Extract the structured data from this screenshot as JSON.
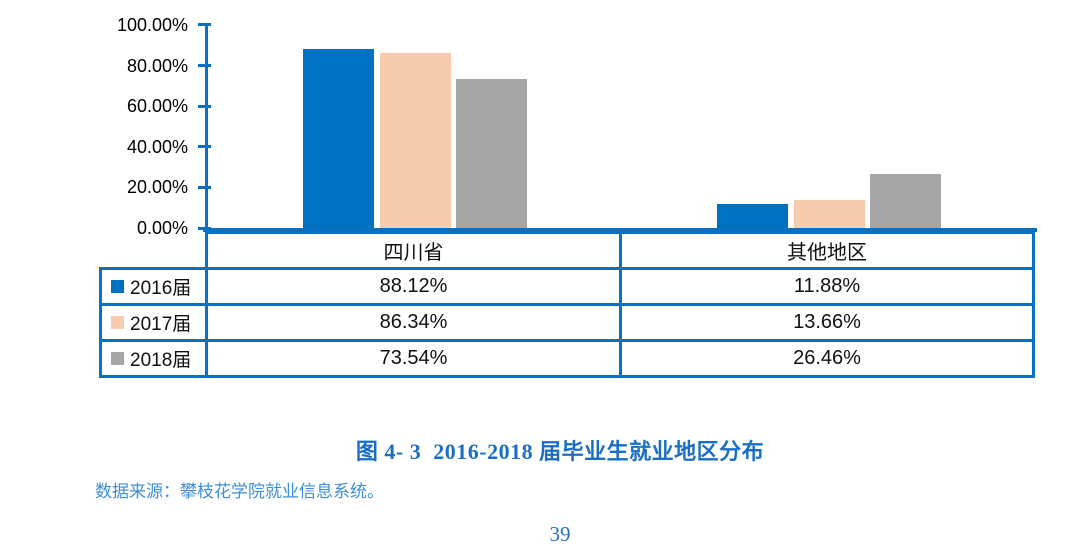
{
  "page": {
    "number": "39"
  },
  "figure": {
    "caption": "图 4- 3  2016-2018 届毕业生就业地区分布",
    "source_note": "数据来源：攀枝花学院就业信息系统。"
  },
  "chart_data": {
    "type": "bar",
    "title": "图 4- 3  2016-2018 届毕业生就业地区分布",
    "categories": [
      "四川省",
      "其他地区"
    ],
    "series": [
      {
        "name": "2016届",
        "color": "#0070C0",
        "values": [
          88.12,
          11.88
        ]
      },
      {
        "name": "2017届",
        "color": "#F7CBAD",
        "values": [
          86.34,
          13.66
        ]
      },
      {
        "name": "2018届",
        "color": "#A6A6A6",
        "values": [
          73.54,
          26.46
        ]
      }
    ],
    "ylim": [
      0,
      100
    ],
    "ytick_labels": [
      "100.00%",
      "80.00%",
      "60.00%",
      "40.00%",
      "20.00%",
      "0.00%"
    ],
    "grid": false,
    "legend_position": "left-of-data-table",
    "value_format": "0.00%"
  },
  "data_table": {
    "column_headers": [
      "四川省",
      "其他地区"
    ],
    "rows": [
      {
        "label": "2016届",
        "cells": [
          "88.12%",
          "11.88%"
        ]
      },
      {
        "label": "2017届",
        "cells": [
          "86.34%",
          "13.66%"
        ]
      },
      {
        "label": "2018届",
        "cells": [
          "73.54%",
          "26.46%"
        ]
      }
    ]
  },
  "colors": {
    "axis_and_table_border": "#0C70C0",
    "series_2016": "#0070C0",
    "series_2017": "#F7CBAD",
    "series_2018": "#A6A6A6",
    "caption_text": "#1A6FC4",
    "source_text": "#3E8ED9",
    "page_number_text": "#2273C8"
  }
}
